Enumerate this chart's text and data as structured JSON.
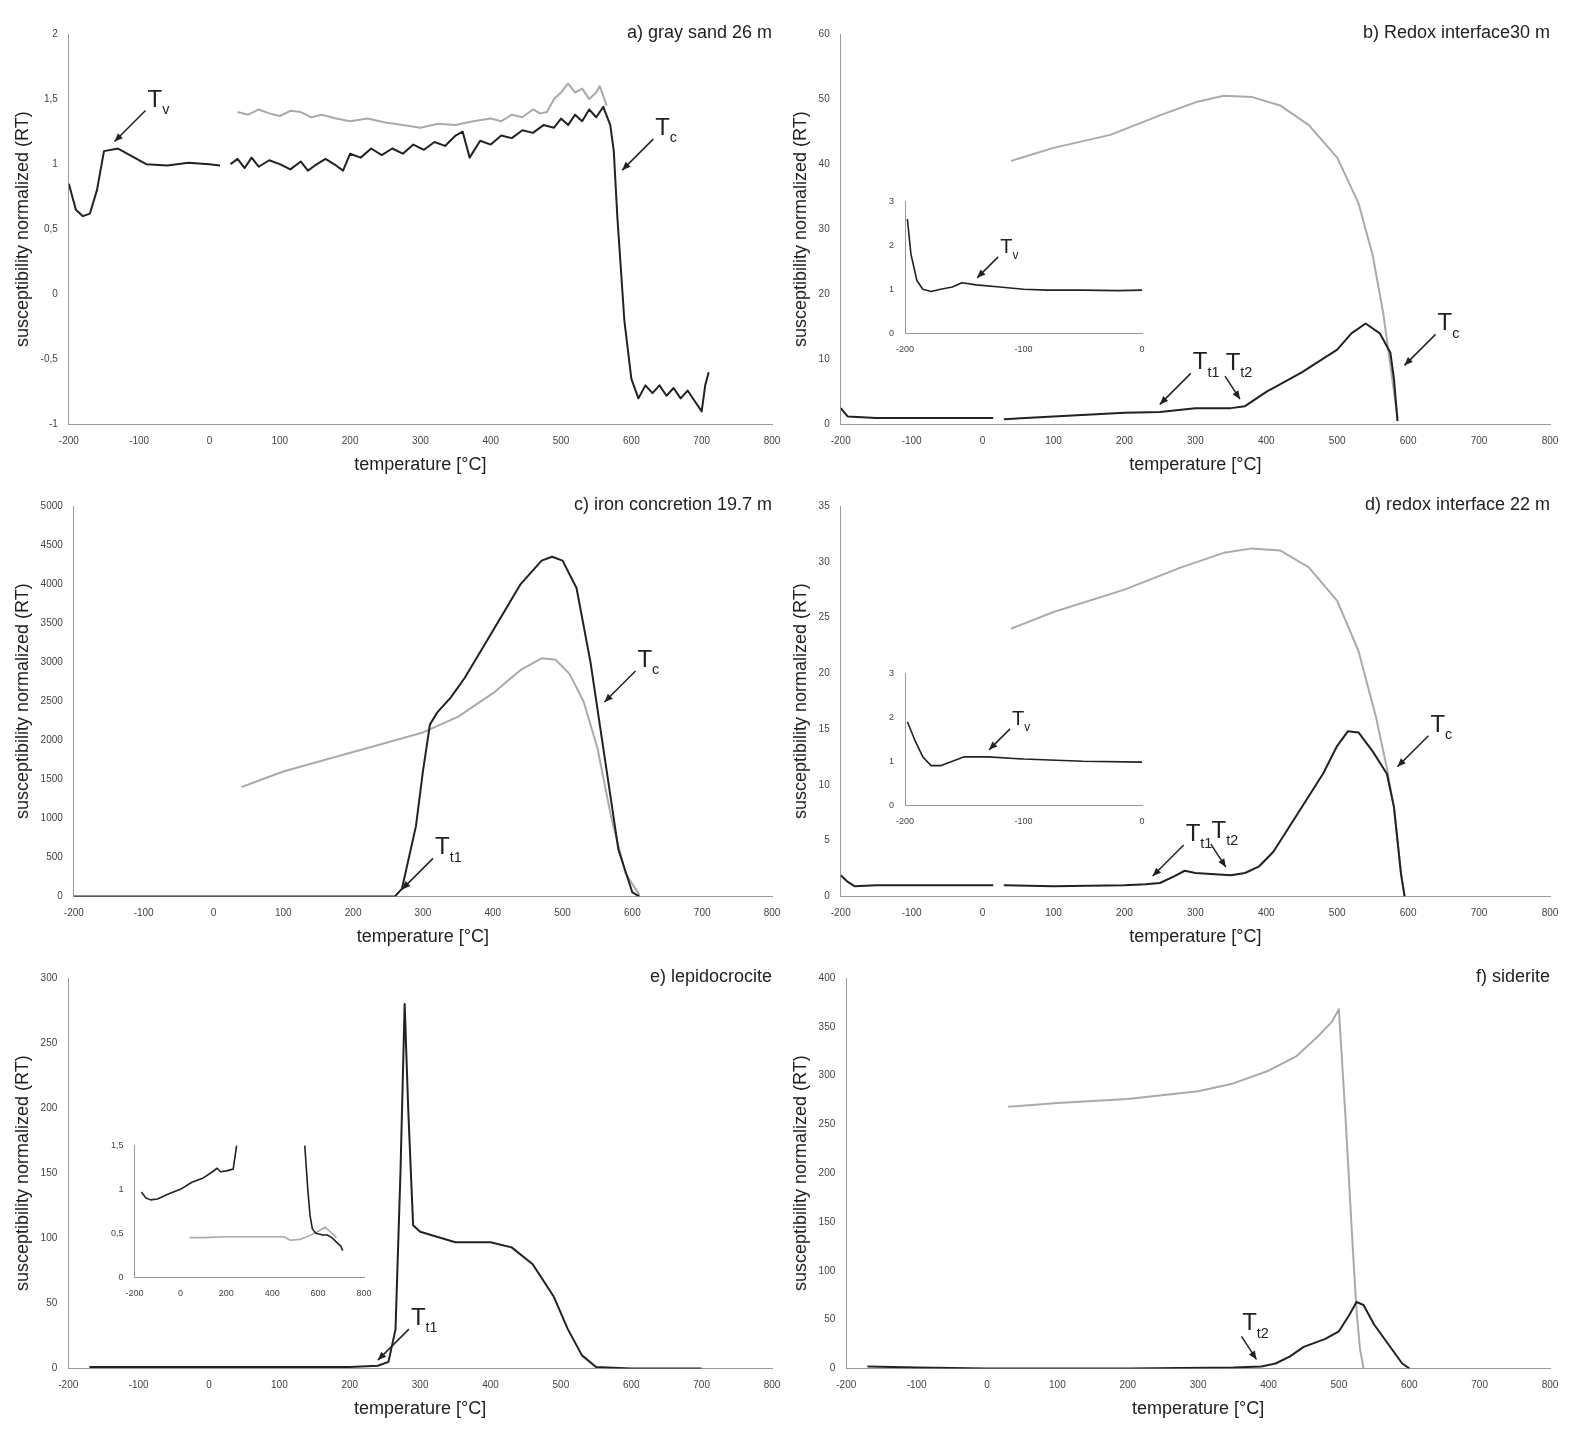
{
  "chart_data": [
    {
      "type": "line",
      "title": "a) gray sand 26 m",
      "xlabel": "temperature [°C]",
      "ylabel": "susceptibility normalized (RT)",
      "marker": "none",
      "xlim": [
        -200,
        800
      ],
      "xticks": [
        -200,
        -100,
        0,
        100,
        200,
        300,
        400,
        500,
        600,
        700,
        800
      ],
      "ylim": [
        -1,
        2
      ],
      "yticks": [
        -1,
        {
          "value": -0.5,
          "label": "-0,5"
        },
        0,
        {
          "value": 0.5,
          "label": "0,5"
        },
        1,
        {
          "value": 1.5,
          "label": "1,5"
        },
        2
      ],
      "series": [
        {
          "color": "#222222",
          "x": [
            -200,
            -190,
            -180,
            -170,
            -160,
            -150,
            -130,
            -110,
            -90,
            -60,
            -30,
            0,
            15,
            22,
            30,
            40,
            50,
            60,
            70,
            85,
            100,
            115,
            130,
            140,
            150,
            165,
            180,
            190,
            200,
            215,
            230,
            245,
            260,
            275,
            290,
            305,
            320,
            335,
            350,
            360,
            370,
            385,
            400,
            415,
            430,
            445,
            460,
            475,
            490,
            500,
            510,
            520,
            530,
            540,
            550,
            560,
            570,
            575,
            580,
            590,
            600,
            610,
            620,
            630,
            640,
            650,
            660,
            670,
            680,
            690,
            700,
            705,
            710
          ],
          "values": [
            0.85,
            0.65,
            0.6,
            0.62,
            0.8,
            1.1,
            1.12,
            1.06,
            1.0,
            0.99,
            1.01,
            1.0,
            0.99,
            null,
            1.0,
            1.04,
            0.97,
            1.05,
            0.98,
            1.03,
            1.0,
            0.96,
            1.02,
            0.95,
            0.99,
            1.04,
            0.99,
            0.95,
            1.08,
            1.05,
            1.12,
            1.07,
            1.12,
            1.08,
            1.15,
            1.11,
            1.17,
            1.14,
            1.22,
            1.25,
            1.05,
            1.18,
            1.15,
            1.22,
            1.2,
            1.26,
            1.24,
            1.3,
            1.28,
            1.35,
            1.3,
            1.38,
            1.33,
            1.42,
            1.36,
            1.44,
            1.3,
            1.1,
            0.6,
            -0.2,
            -0.65,
            -0.8,
            -0.7,
            -0.76,
            -0.7,
            -0.78,
            -0.72,
            -0.8,
            -0.74,
            -0.82,
            -0.9,
            -0.7,
            -0.6
          ]
        },
        {
          "color": "#aaaaaa",
          "x": [
            40,
            55,
            70,
            85,
            100,
            115,
            130,
            145,
            160,
            180,
            200,
            225,
            250,
            275,
            300,
            325,
            350,
            375,
            400,
            415,
            430,
            445,
            460,
            470,
            480,
            490,
            500,
            510,
            520,
            530,
            540,
            550,
            555,
            565
          ],
          "values": [
            1.4,
            1.38,
            1.42,
            1.39,
            1.37,
            1.41,
            1.4,
            1.36,
            1.38,
            1.35,
            1.33,
            1.35,
            1.32,
            1.3,
            1.28,
            1.31,
            1.3,
            1.33,
            1.35,
            1.33,
            1.38,
            1.36,
            1.42,
            1.39,
            1.4,
            1.5,
            1.55,
            1.62,
            1.55,
            1.58,
            1.5,
            1.55,
            1.6,
            1.45
          ]
        }
      ],
      "annotations": [
        {
          "text": "T$_{v}$",
          "x": -145,
          "y": 1.12
        },
        {
          "text": "T$_{c}$",
          "x": 577,
          "y": 0.9
        }
      ]
    },
    {
      "type": "line",
      "title": "b) Redox interface30 m",
      "xlabel": "temperature [°C]",
      "ylabel": "susceptibility normalized (RT)",
      "marker": "none",
      "xlim": [
        -200,
        800
      ],
      "xticks": [
        -200,
        -100,
        0,
        100,
        200,
        300,
        400,
        500,
        600,
        700,
        800
      ],
      "ylim": [
        0,
        60
      ],
      "yticks": [
        0,
        10,
        20,
        30,
        40,
        50,
        60
      ],
      "series": [
        {
          "color": "#222222",
          "x": [
            -200,
            -190,
            -150,
            -100,
            -50,
            0,
            15,
            22,
            30,
            100,
            200,
            250,
            300,
            350,
            370,
            400,
            450,
            500,
            520,
            540,
            560,
            575,
            580,
            585
          ],
          "values": [
            2.5,
            1.2,
            1.0,
            1.0,
            1.0,
            1.0,
            1.0,
            null,
            0.8,
            1.2,
            1.8,
            1.9,
            2.5,
            2.5,
            2.8,
            5,
            8,
            11.5,
            14,
            15.5,
            14,
            11,
            7,
            0.5
          ]
        },
        {
          "color": "#aaaaaa",
          "x": [
            40,
            100,
            180,
            250,
            300,
            340,
            380,
            420,
            460,
            500,
            530,
            550,
            565,
            575,
            585
          ],
          "values": [
            40.5,
            42.5,
            44.5,
            47.5,
            49.5,
            50.5,
            50.3,
            49,
            46,
            41,
            34,
            26,
            17,
            9,
            1
          ]
        }
      ],
      "annotations": [
        {
          "text": "T$_{t1}$",
          "x": 240,
          "y": 2
        },
        {
          "text": "T$_{t2}$",
          "x": 370,
          "y": 2.8
        },
        {
          "text": "T$_{c}$",
          "x": 585,
          "y": 8
        }
      ]
    },
    {
      "type": "line",
      "marker": "none",
      "xlim": [
        -200,
        0
      ],
      "xticks": [
        -200,
        -100,
        0
      ],
      "ylim": [
        0,
        3
      ],
      "yticks": [
        0,
        1,
        2,
        3
      ],
      "series": [
        {
          "color": "#222222",
          "x": [
            -198,
            -195,
            -190,
            -185,
            -178,
            -170,
            -160,
            -152,
            -140,
            -120,
            -100,
            -80,
            -50,
            -20,
            0
          ],
          "values": [
            2.6,
            1.8,
            1.2,
            1.0,
            0.95,
            1.0,
            1.05,
            1.15,
            1.1,
            1.05,
            1.0,
            0.98,
            0.98,
            0.97,
            0.98
          ]
        }
      ],
      "annotations": [
        {
          "text": "T$_{v}$",
          "x": -145,
          "y": 1.1
        }
      ]
    },
    {
      "type": "line",
      "title": "c) iron concretion 19.7 m",
      "xlabel": "temperature [°C]",
      "ylabel": "susceptibility normalized (RT)",
      "marker": "none",
      "xlim": [
        -200,
        800
      ],
      "xticks": [
        -200,
        -100,
        0,
        100,
        200,
        300,
        400,
        500,
        600,
        700,
        800
      ],
      "ylim": [
        0,
        5000
      ],
      "yticks": [
        0,
        500,
        1000,
        1500,
        2000,
        2500,
        3000,
        3500,
        4000,
        4500,
        5000
      ],
      "series": [
        {
          "color": "#222222",
          "x": [
            -200,
            0,
            200,
            260,
            270,
            290,
            300,
            310,
            320,
            340,
            360,
            400,
            440,
            470,
            485,
            500,
            520,
            540,
            560,
            580,
            600,
            610
          ],
          "values": [
            0,
            0,
            0,
            0,
            100,
            900,
            1600,
            2200,
            2350,
            2550,
            2800,
            3400,
            4000,
            4300,
            4350,
            4300,
            3950,
            3000,
            1800,
            600,
            50,
            0
          ]
        },
        {
          "color": "#aaaaaa",
          "x": [
            40,
            100,
            200,
            300,
            350,
            400,
            440,
            470,
            490,
            510,
            530,
            550,
            570,
            590,
            610
          ],
          "values": [
            1400,
            1600,
            1850,
            2100,
            2300,
            2600,
            2900,
            3050,
            3030,
            2850,
            2500,
            1900,
            1000,
            300,
            20
          ]
        }
      ],
      "annotations": [
        {
          "text": "T$_{t1}$",
          "x": 260,
          "y": 0
        },
        {
          "text": "T$_{c}$",
          "x": 550,
          "y": 2400
        }
      ]
    },
    {
      "type": "line",
      "title": "d) redox interface 22 m",
      "xlabel": "temperature [°C]",
      "ylabel": "susceptibility normalized (RT)",
      "marker": "none",
      "xlim": [
        -200,
        800
      ],
      "xticks": [
        -200,
        -100,
        0,
        100,
        200,
        300,
        400,
        500,
        600,
        700,
        800
      ],
      "ylim": [
        0,
        35
      ],
      "yticks": [
        0,
        5,
        10,
        15,
        20,
        25,
        30,
        35
      ],
      "series": [
        {
          "color": "#222222",
          "x": [
            -200,
            -190,
            -180,
            -150,
            -100,
            0,
            15,
            22,
            30,
            100,
            200,
            230,
            250,
            270,
            285,
            300,
            350,
            370,
            390,
            410,
            450,
            480,
            500,
            515,
            530,
            550,
            570,
            580,
            590,
            595
          ],
          "values": [
            1.9,
            1.3,
            0.9,
            1.0,
            1.0,
            1.0,
            1.0,
            null,
            1.0,
            0.9,
            1.0,
            1.1,
            1.2,
            1.8,
            2.3,
            2.1,
            1.9,
            2.1,
            2.7,
            4,
            8,
            11,
            13.5,
            14.8,
            14.7,
            13,
            11,
            8,
            2,
            0
          ]
        },
        {
          "color": "#aaaaaa",
          "x": [
            40,
            100,
            200,
            280,
            340,
            380,
            420,
            460,
            500,
            530,
            555,
            570,
            580,
            590,
            595
          ],
          "values": [
            24,
            25.5,
            27.5,
            29.5,
            30.8,
            31.2,
            31,
            29.5,
            26.5,
            22,
            16,
            11.5,
            8,
            2,
            0
          ]
        }
      ],
      "annotations": [
        {
          "text": "T$_{t1}$",
          "x": 230,
          "y": 1.2
        },
        {
          "text": "T$_{t2}$",
          "x": 350,
          "y": 2
        },
        {
          "text": "T$_{c}$",
          "x": 575,
          "y": 11
        }
      ]
    },
    {
      "type": "line",
      "marker": "none",
      "xlim": [
        -200,
        0
      ],
      "xticks": [
        -200,
        -100,
        0
      ],
      "ylim": [
        0,
        3
      ],
      "yticks": [
        0,
        1,
        2,
        3
      ],
      "series": [
        {
          "color": "#222222",
          "x": [
            -198,
            -192,
            -185,
            -178,
            -170,
            -160,
            -150,
            -130,
            -100,
            -50,
            0
          ],
          "values": [
            1.9,
            1.5,
            1.1,
            0.9,
            0.9,
            1.0,
            1.1,
            1.1,
            1.05,
            1.0,
            0.98
          ]
        }
      ],
      "annotations": [
        {
          "text": "T$_{v}$",
          "x": -135,
          "y": 1.1
        }
      ]
    },
    {
      "type": "line",
      "title": "e) lepidocrocite",
      "xlabel": "temperature [°C]",
      "ylabel": "susceptibility normalized (RT)",
      "marker": "none",
      "xlim": [
        -200,
        800
      ],
      "xticks": [
        -200,
        -100,
        0,
        100,
        200,
        300,
        400,
        500,
        600,
        700,
        800
      ],
      "ylim": [
        0,
        300
      ],
      "yticks": [
        0,
        50,
        100,
        150,
        200,
        250,
        300
      ],
      "series": [
        {
          "color": "#222222",
          "x": [
            -170,
            0,
            100,
            200,
            240,
            255,
            265,
            272,
            278,
            283,
            290,
            300,
            350,
            400,
            430,
            460,
            490,
            510,
            530,
            550,
            600,
            700
          ],
          "values": [
            1,
            1,
            1,
            1,
            2,
            5,
            30,
            150,
            280,
            200,
            110,
            105,
            97,
            97,
            93,
            80,
            55,
            30,
            10,
            1,
            0,
            0
          ]
        }
      ],
      "annotations": [
        {
          "text": "T$_{t1}$",
          "x": 230,
          "y": 1
        }
      ]
    },
    {
      "type": "line",
      "marker": "none",
      "xlim": [
        -200,
        800
      ],
      "xticks": [
        -200,
        0,
        200,
        400,
        600,
        800
      ],
      "ylim": [
        0,
        1.5
      ],
      "yticks": [
        0,
        {
          "value": 0.5,
          "label": "0,5"
        },
        1,
        {
          "value": 1.5,
          "label": "1,5"
        }
      ],
      "series": [
        {
          "color": "#222222",
          "x": [
            -170,
            -150,
            -130,
            -100,
            -50,
            0,
            50,
            100,
            140,
            160,
            175,
            200,
            230,
            245,
            400,
            542,
            555,
            565,
            575,
            590,
            620,
            640,
            660,
            680,
            700,
            707
          ],
          "values": [
            0.97,
            0.9,
            0.88,
            0.89,
            0.95,
            1.0,
            1.08,
            1.13,
            1.2,
            1.24,
            1.2,
            1.21,
            1.23,
            1.5,
            null,
            1.5,
            1.0,
            0.7,
            0.55,
            0.5,
            0.48,
            0.48,
            0.45,
            0.4,
            0.35,
            0.3
          ]
        },
        {
          "color": "#aaaaaa",
          "x": [
            40,
            100,
            200,
            300,
            450,
            480,
            520,
            560,
            600,
            630,
            660,
            680
          ],
          "values": [
            0.45,
            0.45,
            0.46,
            0.46,
            0.46,
            0.42,
            0.43,
            0.47,
            0.52,
            0.57,
            0.5,
            0.45
          ]
        }
      ]
    },
    {
      "type": "line",
      "title": "f) siderite",
      "xlabel": "temperature [°C]",
      "ylabel": "susceptibility normalized (RT)",
      "marker": "none",
      "xlim": [
        -200,
        800
      ],
      "xticks": [
        -200,
        -100,
        0,
        100,
        200,
        300,
        400,
        500,
        600,
        700,
        800
      ],
      "ylim": [
        0,
        400
      ],
      "yticks": [
        0,
        50,
        100,
        150,
        200,
        250,
        300,
        350,
        400
      ],
      "series": [
        {
          "color": "#222222",
          "x": [
            -170,
            -100,
            0,
            200,
            350,
            390,
            410,
            430,
            450,
            480,
            500,
            515,
            525,
            535,
            550,
            570,
            590,
            600
          ],
          "values": [
            2,
            1,
            0,
            0,
            1,
            2,
            5,
            12,
            22,
            30,
            38,
            55,
            68,
            65,
            45,
            25,
            5,
            0
          ]
        },
        {
          "color": "#aaaaaa",
          "x": [
            30,
            100,
            200,
            300,
            350,
            400,
            440,
            470,
            490,
            500,
            510,
            520,
            525,
            530,
            535
          ],
          "values": [
            268,
            272,
            276,
            284,
            292,
            305,
            320,
            340,
            355,
            368,
            250,
            120,
            60,
            20,
            0
          ]
        }
      ],
      "annotations": [
        {
          "text": "T$_{t2}$",
          "x": 390,
          "y": 2
        }
      ]
    }
  ]
}
